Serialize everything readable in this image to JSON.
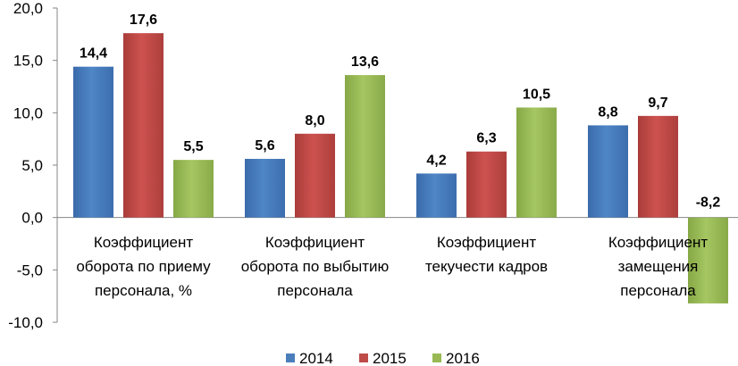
{
  "chart_data": {
    "type": "bar",
    "categories": [
      [
        "Коэффициент",
        "оборота по приему",
        "персонала, %"
      ],
      [
        "Коэффициент",
        "оборота по выбытию",
        "персонала"
      ],
      [
        "Коэффициент",
        "текучести кадров"
      ],
      [
        "Коэффициент",
        "замещения",
        "персонала"
      ]
    ],
    "series": [
      {
        "name": "2014",
        "values": [
          14.4,
          5.6,
          4.2,
          8.8
        ],
        "labels": [
          "14,4",
          "5,6",
          "4,2",
          "8,8"
        ]
      },
      {
        "name": "2015",
        "values": [
          17.6,
          8.0,
          6.3,
          9.7
        ],
        "labels": [
          "17,6",
          "8,0",
          "6,3",
          "9,7"
        ]
      },
      {
        "name": "2016",
        "values": [
          5.5,
          13.6,
          10.5,
          -8.2
        ],
        "labels": [
          "5,5",
          "13,6",
          "10,5",
          "-8,2"
        ]
      }
    ],
    "yticks": [
      "-10,0",
      "-5,0",
      "0,0",
      "5,0",
      "10,0",
      "15,0",
      "20,0"
    ],
    "ylim": [
      -10,
      20
    ],
    "legend_position": "bottom",
    "grid": false,
    "colors": {
      "2014": "#4a7ebb",
      "2015": "#be4b48",
      "2016": "#98b954"
    }
  }
}
